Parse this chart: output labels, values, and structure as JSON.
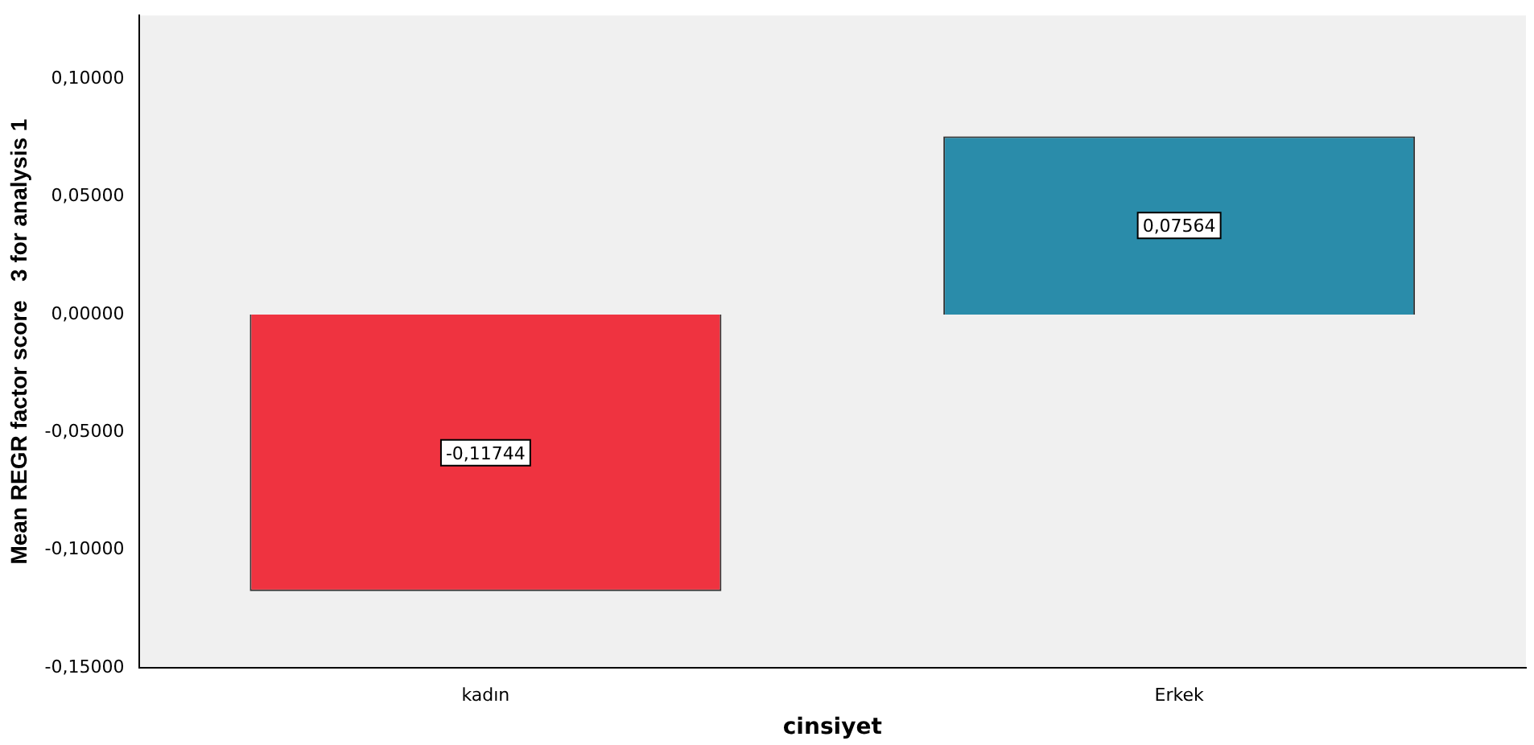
{
  "chart_data": {
    "type": "bar",
    "xlabel": "cinsiyet",
    "ylabel": "Mean REGR factor score   3 for analysis 1",
    "categories": [
      "kadın",
      "Erkek"
    ],
    "values": [
      -0.11744,
      0.07564
    ],
    "colors": [
      "#ef3340",
      "#2a8caa"
    ],
    "value_labels": [
      "-0,11744",
      "0,07564"
    ],
    "ylim": [
      -0.15,
      0.127
    ],
    "yticks": [
      {
        "value": -0.15,
        "label": "-0,15000"
      },
      {
        "value": -0.1,
        "label": "-0,10000"
      },
      {
        "value": -0.05,
        "label": "-0,05000"
      },
      {
        "value": 0,
        "label": "0,00000"
      },
      {
        "value": 0.05,
        "label": "0,05000"
      },
      {
        "value": 0.1,
        "label": "0,10000"
      }
    ],
    "grid": false,
    "legend": false
  }
}
